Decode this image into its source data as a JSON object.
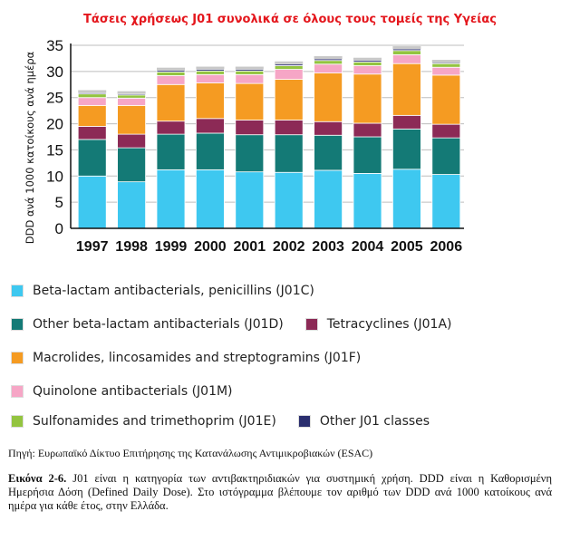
{
  "chart_data": {
    "type": "stacked-bar",
    "title": "Τάσεις χρήσεως J01 συνολικά σε όλους τους τομείς της Υγείας",
    "ylabel": "DDD ανά 1000 κατοίκους ανά ημέρα",
    "xlabel": "",
    "ylim": [
      0,
      35
    ],
    "yticks": [
      0,
      5,
      10,
      15,
      20,
      25,
      30,
      35
    ],
    "grid": true,
    "categories": [
      "1997",
      "1998",
      "1999",
      "2000",
      "2001",
      "2002",
      "2003",
      "2004",
      "2005",
      "2006"
    ],
    "series": [
      {
        "name": "Beta-lactam antibacterials, penicillins (J01C)",
        "color": "#3ec8f0",
        "values": [
          10.0,
          8.9,
          11.2,
          11.2,
          10.8,
          10.7,
          11.1,
          10.5,
          11.3,
          10.3
        ]
      },
      {
        "name": "Other beta-lactam antibacterials (J01D)",
        "color": "#147a76",
        "values": [
          7.0,
          6.5,
          6.8,
          7.0,
          7.1,
          7.2,
          6.7,
          7.0,
          7.7,
          7.0
        ]
      },
      {
        "name": "Tetracyclines (J01A)",
        "color": "#8c2a56",
        "values": [
          2.5,
          2.6,
          2.5,
          2.8,
          2.8,
          2.8,
          2.6,
          2.6,
          2.6,
          2.6
        ]
      },
      {
        "name": "Macrolides, lincosamides and streptogramins (J01F)",
        "color": "#f59b22",
        "values": [
          4.0,
          5.5,
          7.0,
          6.8,
          7.0,
          7.8,
          9.3,
          9.4,
          9.9,
          9.4
        ]
      },
      {
        "name": "Quinolone antibacterials (J01M)",
        "color": "#f6a6c6",
        "values": [
          1.5,
          1.4,
          1.7,
          1.6,
          1.7,
          1.9,
          1.7,
          1.6,
          1.7,
          1.5
        ]
      },
      {
        "name": "Sulfonamides and trimethoprim (J01E)",
        "color": "#93c440",
        "values": [
          0.7,
          0.6,
          0.7,
          0.7,
          0.7,
          0.7,
          0.7,
          0.7,
          0.8,
          0.7
        ]
      },
      {
        "name": "Other J01 classes",
        "color": "#2a2e6e",
        "values": [
          0.2,
          0.2,
          0.3,
          0.3,
          0.3,
          0.3,
          0.3,
          0.3,
          0.3,
          0.2
        ]
      }
    ]
  },
  "legend_rows": [
    [
      {
        "label": "Beta-lactam antibacterials, penicillins (J01C)",
        "color": "#3ec8f0"
      }
    ],
    [
      {
        "label": "Other beta-lactam antibacterials (J01D)",
        "color": "#147a76"
      },
      {
        "label": "Tetracyclines (J01A)",
        "color": "#8c2a56"
      }
    ],
    [
      {
        "label": "Macrolides, lincosamides and streptogramins (J01F)",
        "color": "#f59b22"
      }
    ],
    [
      {
        "label": "Quinolone antibacterials (J01M)",
        "color": "#f6a6c6"
      }
    ],
    [
      {
        "label": "Sulfonamides and trimethoprim (J01E)",
        "color": "#93c440"
      },
      {
        "label": "Other J01 classes",
        "color": "#2a2e6e"
      }
    ]
  ],
  "source": "Πηγή: Ευρωπαϊκό Δίκτυο Επιτήρησης της Κατανάλωσης Αντιμικροβιακών (ESAC)",
  "caption": {
    "label": "Εικόνα 2-6.",
    "text": " J01 είναι η κατηγορία των αντιβακτηριδιακών για συστημική χρήση. DDD είναι η Καθορισμένη Ημερήσια Δόση (Defined Daily Dose). Στο ιστόγραμμα βλέπουμε τον αριθμό των DDD ανά 1000 κατοίκους ανά ημέρα για κάθε έτος, στην Ελλάδα."
  }
}
